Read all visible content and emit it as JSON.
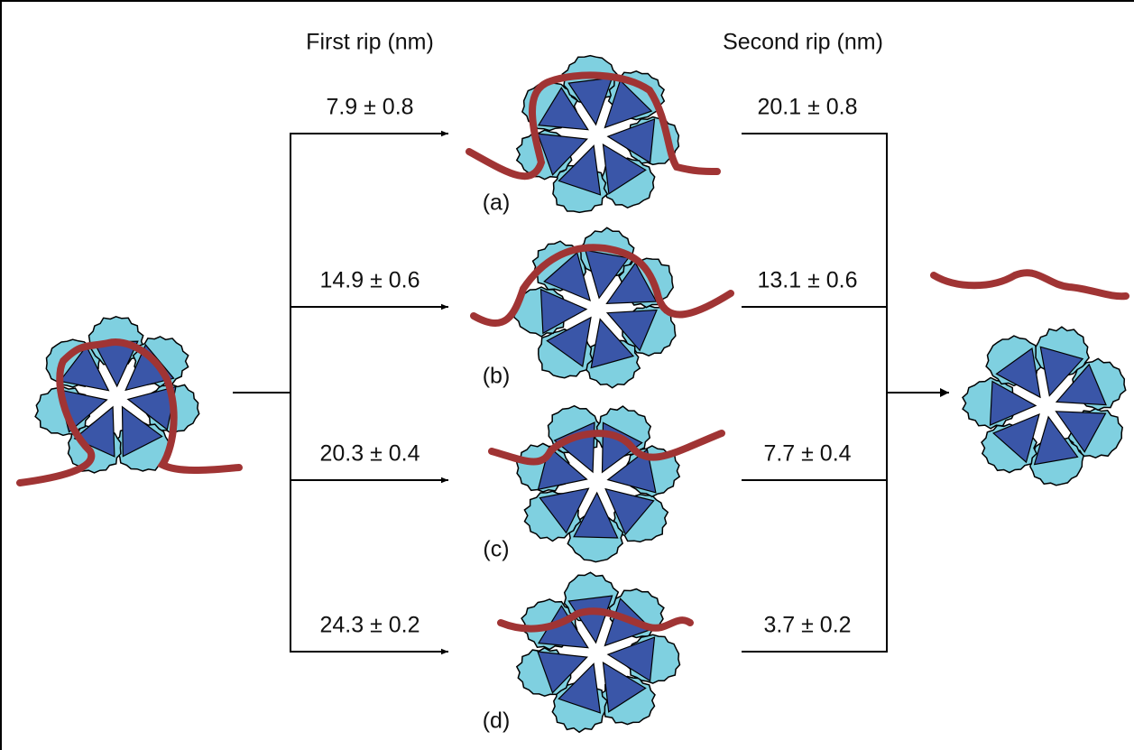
{
  "header": {
    "first": "First rip (nm)",
    "second": "Second rip (nm)"
  },
  "rows": [
    {
      "label": "(a)",
      "first": "7.9 ± 0.8",
      "second": "20.1 ± 0.8"
    },
    {
      "label": "(b)",
      "first": "14.9 ± 0.6",
      "second": "13.1 ± 0.6"
    },
    {
      "label": "(c)",
      "first": "20.3 ± 0.4",
      "second": "7.7 ± 0.4"
    },
    {
      "label": "(d)",
      "first": "24.3 ± 0.2",
      "second": "3.7 ± 0.2"
    }
  ]
}
